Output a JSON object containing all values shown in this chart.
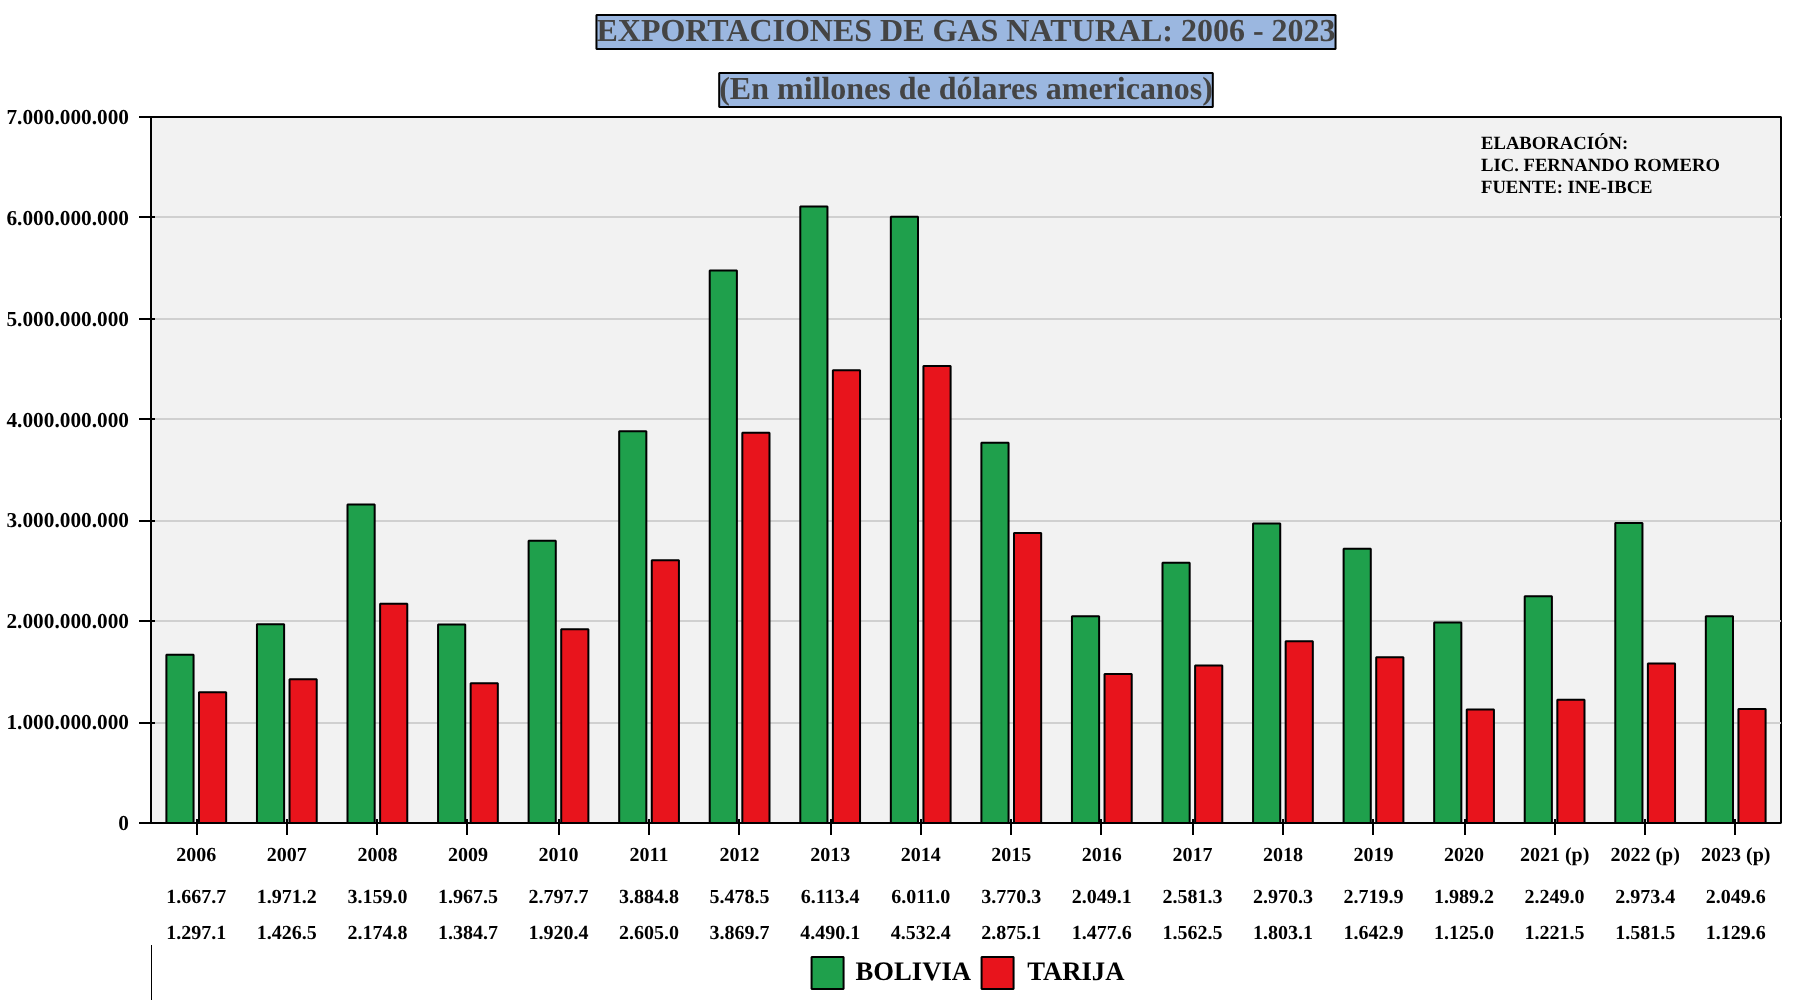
{
  "chart_data": {
    "type": "bar",
    "title": "EXPORTACIONES DE GAS NATURAL: 2006 - 2023",
    "subtitle": "(En millones de dólares americanos)",
    "categories": [
      "2006",
      "2007",
      "2008",
      "2009",
      "2010",
      "2011",
      "2012",
      "2013",
      "2014",
      "2015",
      "2016",
      "2017",
      "2018",
      "2019",
      "2020",
      "2021 (p)",
      "2022 (p)",
      "2023 (p)"
    ],
    "series": [
      {
        "name": "BOLIVIA",
        "color": "#1fa04c",
        "values": [
          1667700000,
          1971200000,
          3159000000,
          1967500000,
          2797700000,
          3884800000,
          5478500000,
          6113400000,
          6011000000,
          3770300000,
          2049100000,
          2581300000,
          2970300000,
          2719900000,
          1989200000,
          2249000000,
          2973400000,
          2049600000
        ],
        "value_labels": [
          "1.667.7",
          "1.971.2",
          "3.159.0",
          "1.967.5",
          "2.797.7",
          "3.884.8",
          "5.478.5",
          "6.113.4",
          "6.011.0",
          "3.770.3",
          "2.049.1",
          "2.581.3",
          "2.970.3",
          "2.719.9",
          "1.989.2",
          "2.249.0",
          "2.973.4",
          "2.049.6"
        ]
      },
      {
        "name": "TARIJA",
        "color": "#e8141c",
        "values": [
          1297100000,
          1426500000,
          2174800000,
          1384700000,
          1920400000,
          2605000000,
          3869700000,
          4490100000,
          4532400000,
          2875100000,
          1477600000,
          1562500000,
          1803100000,
          1642900000,
          1125000000,
          1221500000,
          1581500000,
          1129600000
        ],
        "value_labels": [
          "1.297.1",
          "1.426.5",
          "2.174.8",
          "1.384.7",
          "1.920.4",
          "2.605.0",
          "3.869.7",
          "4.490.1",
          "4.532.4",
          "2.875.1",
          "1.477.6",
          "1.562.5",
          "1.803.1",
          "1.642.9",
          "1.125.0",
          "1.221.5",
          "1.581.5",
          "1.129.6"
        ]
      }
    ],
    "ylim": [
      0,
      7000000000
    ],
    "yticks": [
      0,
      {
        "value": 1000000000,
        "label": "1.000.000.000"
      },
      {
        "value": 2000000000,
        "label": "2.000.000.000"
      },
      {
        "value": 3000000000,
        "label": "3.000.000.000"
      },
      {
        "value": 4000000000,
        "label": "4.000.000.000"
      },
      {
        "value": 5000000000,
        "label": "5.000.000.000"
      },
      {
        "value": 6000000000,
        "label": "6.000.000.000"
      },
      {
        "value": 7000000000,
        "label": "7.000.000.000"
      }
    ],
    "grid": "y",
    "legend": "bottom",
    "annotations": [
      "ELABORACIÓN:",
      "LIC. FERNANDO ROMERO",
      "FUENTE: INE-IBCE"
    ]
  }
}
